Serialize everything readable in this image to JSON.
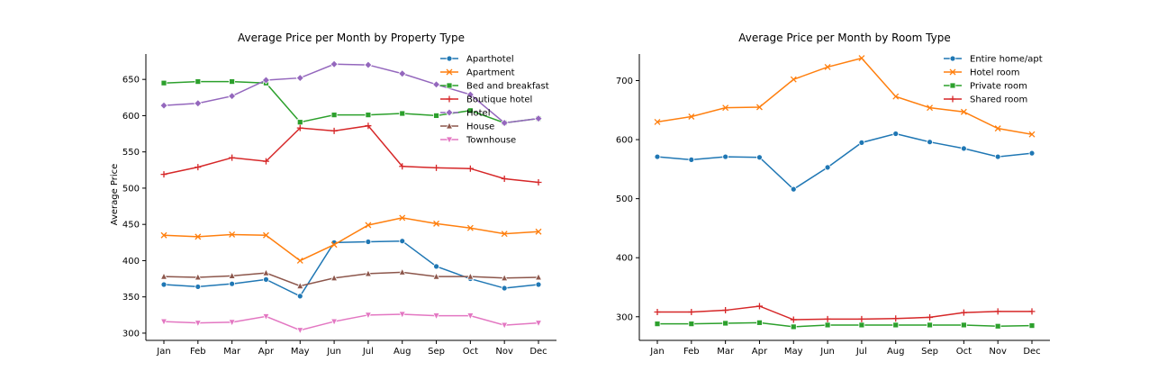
{
  "chart_data": [
    {
      "type": "line",
      "title": "Average Price per Month by Property Type",
      "xlabel": "",
      "ylabel": "Average Price",
      "categories": [
        "Jan",
        "Feb",
        "Mar",
        "Apr",
        "May",
        "Jun",
        "Jul",
        "Aug",
        "Sep",
        "Oct",
        "Nov",
        "Dec"
      ],
      "ylim": [
        290,
        685
      ],
      "yticks": [
        300,
        350,
        400,
        450,
        500,
        550,
        600,
        650
      ],
      "legend_position": "top-right",
      "series": [
        {
          "name": "Aparthotel",
          "color": "#1f77b4",
          "marker": "circle",
          "values": [
            367,
            364,
            368,
            374,
            351,
            425,
            426,
            427,
            392,
            375,
            362,
            367
          ]
        },
        {
          "name": "Apartment",
          "color": "#ff7f0e",
          "marker": "x",
          "values": [
            435,
            433,
            436,
            435,
            400,
            422,
            449,
            459,
            451,
            445,
            437,
            440
          ]
        },
        {
          "name": "Bed and breakfast",
          "color": "#2ca02c",
          "marker": "square",
          "values": [
            645,
            647,
            647,
            645,
            591,
            601,
            601,
            603,
            600,
            607,
            590,
            596
          ]
        },
        {
          "name": "Boutique hotel",
          "color": "#d62728",
          "marker": "plus",
          "values": [
            519,
            529,
            542,
            537,
            583,
            579,
            586,
            530,
            528,
            527,
            513,
            508
          ]
        },
        {
          "name": "Hotel",
          "color": "#9467bd",
          "marker": "diamond",
          "values": [
            614,
            617,
            627,
            649,
            652,
            671,
            670,
            658,
            643,
            629,
            590,
            596
          ]
        },
        {
          "name": "House",
          "color": "#8c564b",
          "marker": "triangle-up",
          "values": [
            378,
            377,
            379,
            383,
            365,
            376,
            382,
            384,
            378,
            378,
            376,
            377
          ]
        },
        {
          "name": "Townhouse",
          "color": "#e377c2",
          "marker": "triangle-down",
          "values": [
            316,
            314,
            315,
            323,
            304,
            316,
            325,
            326,
            324,
            324,
            311,
            314
          ]
        }
      ]
    },
    {
      "type": "line",
      "title": "Average Price per Month by Room Type",
      "xlabel": "",
      "ylabel": "",
      "categories": [
        "Jan",
        "Feb",
        "Mar",
        "Apr",
        "May",
        "Jun",
        "Jul",
        "Aug",
        "Sep",
        "Oct",
        "Nov",
        "Dec"
      ],
      "ylim": [
        260,
        745
      ],
      "yticks": [
        300,
        400,
        500,
        600,
        700
      ],
      "legend_position": "top-right",
      "series": [
        {
          "name": "Entire home/apt",
          "color": "#1f77b4",
          "marker": "circle",
          "values": [
            571,
            566,
            571,
            570,
            516,
            553,
            595,
            610,
            596,
            585,
            571,
            577
          ]
        },
        {
          "name": "Hotel room",
          "color": "#ff7f0e",
          "marker": "x",
          "values": [
            630,
            639,
            654,
            655,
            702,
            723,
            738,
            673,
            654,
            647,
            619,
            609
          ]
        },
        {
          "name": "Private room",
          "color": "#2ca02c",
          "marker": "square",
          "values": [
            288,
            288,
            289,
            290,
            283,
            286,
            286,
            286,
            286,
            286,
            284,
            285
          ]
        },
        {
          "name": "Shared room",
          "color": "#d62728",
          "marker": "plus",
          "values": [
            308,
            308,
            311,
            318,
            295,
            296,
            296,
            297,
            299,
            307,
            309,
            309
          ]
        }
      ]
    }
  ]
}
